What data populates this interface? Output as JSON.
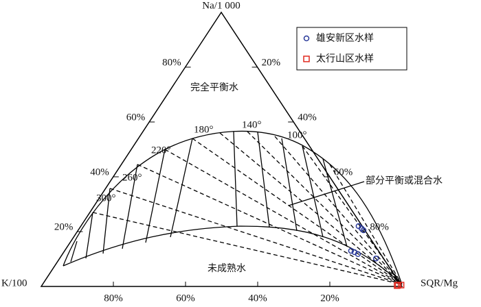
{
  "chart_data": {
    "type": "ternary",
    "apex_labels": {
      "top": "Na/1 000",
      "left": "K/100",
      "right": "SQR/Mg"
    },
    "left_ticks": [
      {
        "value": 80,
        "label": "80%"
      },
      {
        "value": 60,
        "label": "60%"
      },
      {
        "value": 40,
        "label": "40%"
      },
      {
        "value": 20,
        "label": "20%"
      }
    ],
    "right_ticks": [
      {
        "value": 20,
        "label": "20%"
      },
      {
        "value": 40,
        "label": "40%"
      },
      {
        "value": 60,
        "label": "60%"
      },
      {
        "value": 80,
        "label": "80%"
      }
    ],
    "bottom_ticks": [
      {
        "value": 80,
        "label": "80%"
      },
      {
        "value": 60,
        "label": "60%"
      },
      {
        "value": 40,
        "label": "40%"
      },
      {
        "value": 20,
        "label": "20%"
      }
    ],
    "region_labels": [
      "完全平衡水",
      "部分平衡或混合水",
      "未成熟水"
    ],
    "temperature_labels": [
      "100°",
      "140°",
      "180°",
      "220°",
      "260°",
      "300°"
    ],
    "series": [
      {
        "name": "雄安新区水样",
        "color": "#2a3a9a",
        "marker": "circle",
        "na": [
          22,
          21.2,
          20.5,
          13,
          12.5,
          11.8,
          10.2
        ],
        "k": [
          1,
          0.6,
          0.4,
          7.6,
          6.9,
          6.3,
          2.1
        ],
        "mg": [
          77,
          78.2,
          79.1,
          79.4,
          80.6,
          81.9,
          87.7
        ]
      },
      {
        "name": "太行山区水样",
        "color": "#e0281e",
        "marker": "square",
        "na": [
          0.5,
          0.5,
          0.3
        ],
        "k": [
          0,
          0.8,
          1.2
        ],
        "mg": [
          99.5,
          98.7,
          98.5
        ]
      }
    ]
  }
}
